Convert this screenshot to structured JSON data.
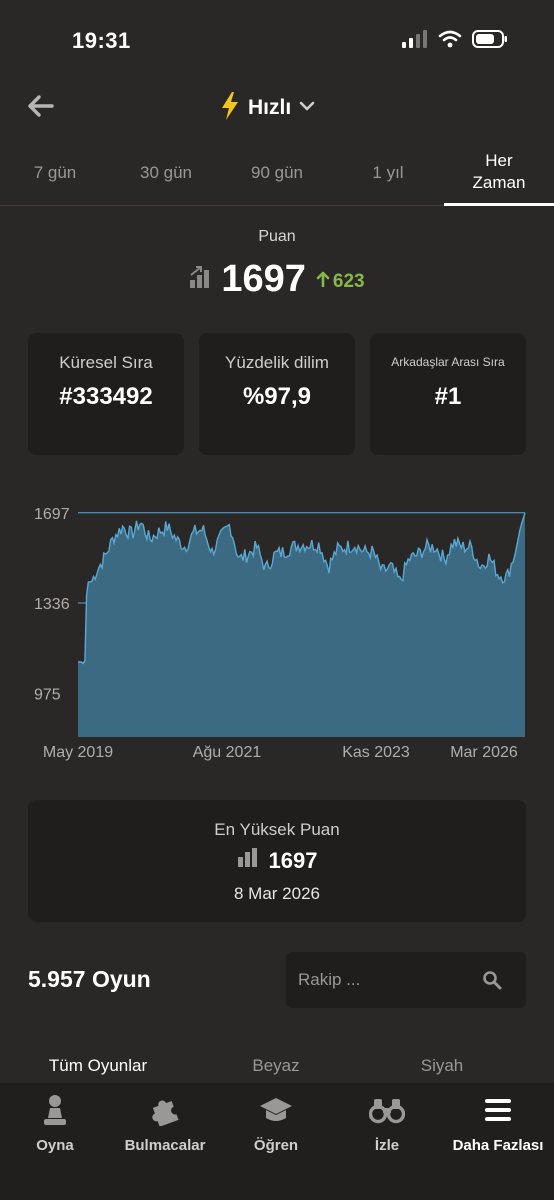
{
  "status_bar": {
    "time": "19:31",
    "icons": [
      "signal-icon",
      "wifi-icon",
      "battery-icon"
    ]
  },
  "header": {
    "title": "Hızlı",
    "icons": [
      "back-arrow-icon",
      "lightning-icon",
      "chevron-down-icon"
    ],
    "accent_color": "#f5c518"
  },
  "tabs": [
    {
      "label": "7 gün",
      "active": false
    },
    {
      "label": "30 gün",
      "active": false
    },
    {
      "label": "90 gün",
      "active": false
    },
    {
      "label": "1 yıl",
      "active": false
    },
    {
      "label": "Her\nZaman",
      "active": true
    }
  ],
  "rating": {
    "label": "Puan",
    "value": "1697",
    "delta": "623",
    "delta_color": "#86b84a"
  },
  "stats": [
    {
      "label": "Küresel Sıra",
      "value": "#333492"
    },
    {
      "label": "Yüzdelik dilim",
      "value": "%97,9"
    },
    {
      "label": "Arkadaşlar Arası Sıra",
      "value": "#1"
    }
  ],
  "chart_data": {
    "type": "area",
    "y_ticks": [
      "1697",
      "1336",
      "975"
    ],
    "x_ticks": [
      "May 2019",
      "Ağu 2021",
      "Kas 2023",
      "Mar 2026"
    ],
    "ylim": [
      800,
      1720
    ],
    "x": [
      0,
      0.01,
      0.015,
      0.02,
      0.03,
      0.04,
      0.06,
      0.08,
      0.1,
      0.12,
      0.14,
      0.16,
      0.18,
      0.2,
      0.22,
      0.24,
      0.26,
      0.28,
      0.3,
      0.32,
      0.34,
      0.36,
      0.38,
      0.4,
      0.42,
      0.44,
      0.46,
      0.48,
      0.5,
      0.52,
      0.54,
      0.56,
      0.58,
      0.6,
      0.62,
      0.64,
      0.66,
      0.68,
      0.7,
      0.72,
      0.74,
      0.76,
      0.78,
      0.8,
      0.82,
      0.84,
      0.86,
      0.88,
      0.9,
      0.92,
      0.94,
      0.96,
      0.98,
      0.99,
      1.0
    ],
    "values": [
      1100,
      1100,
      1080,
      1420,
      1420,
      1460,
      1520,
      1600,
      1640,
      1610,
      1660,
      1590,
      1620,
      1640,
      1590,
      1560,
      1620,
      1630,
      1540,
      1600,
      1650,
      1510,
      1530,
      1560,
      1470,
      1530,
      1540,
      1560,
      1570,
      1570,
      1570,
      1480,
      1550,
      1560,
      1570,
      1540,
      1540,
      1460,
      1480,
      1420,
      1510,
      1530,
      1560,
      1560,
      1510,
      1580,
      1560,
      1560,
      1480,
      1520,
      1450,
      1440,
      1550,
      1640,
      1697
    ],
    "fill_color": "#3b6a82",
    "line_color": "#5aa8d4"
  },
  "best": {
    "label": "En Yüksek Puan",
    "value": "1697",
    "date": "8 Mar 2026"
  },
  "games": {
    "count_label": "5.957 Oyun",
    "search_placeholder": "Rakip ..."
  },
  "filters": [
    {
      "label": "Tüm Oyunlar",
      "active": true
    },
    {
      "label": "Beyaz",
      "active": false
    },
    {
      "label": "Siyah",
      "active": false
    }
  ],
  "bottom_nav": [
    {
      "label": "Oyna",
      "icon": "pawn-icon"
    },
    {
      "label": "Bulmacalar",
      "icon": "puzzle-icon"
    },
    {
      "label": "Öğren",
      "icon": "graduation-cap-icon"
    },
    {
      "label": "İzle",
      "icon": "binoculars-icon"
    },
    {
      "label": "Daha Fazlası",
      "icon": "menu-icon"
    }
  ]
}
